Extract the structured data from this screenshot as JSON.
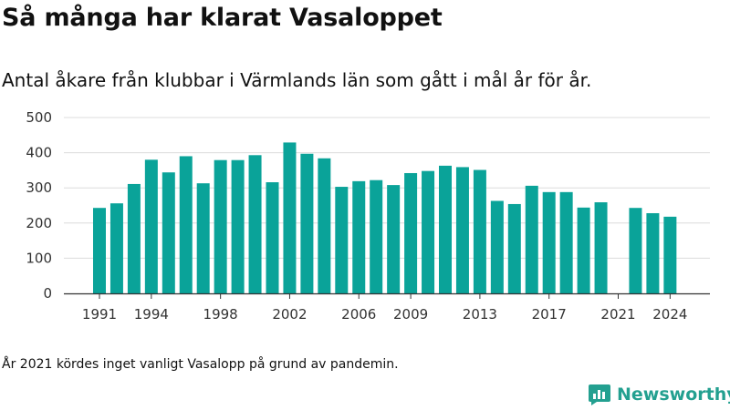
{
  "header": {
    "title": "Så många har klarat Vasaloppet",
    "subtitle": "Antal åkare från klubbar i Värmlands län som gått i mål år för år."
  },
  "footnote": "År 2021 kördes inget vanligt Vasalopp på grund av pandemin.",
  "brand": {
    "name": "Newsworthy",
    "icon": "newsworthy-logo-icon",
    "color": "#23a090"
  },
  "chart_data": {
    "type": "bar",
    "bar_color": "#0aa399",
    "ylim": [
      0,
      500
    ],
    "y_ticks": [
      0,
      100,
      200,
      300,
      400,
      500
    ],
    "x_ticks": [
      "1991",
      "1994",
      "1998",
      "2002",
      "2006",
      "2009",
      "2013",
      "2017",
      "2021",
      "2024"
    ],
    "grid": true,
    "categories": [
      "1991",
      "1992",
      "1993",
      "1994",
      "1995",
      "1996",
      "1997",
      "1998",
      "1999",
      "2000",
      "2001",
      "2002",
      "2003",
      "2004",
      "2005",
      "2006",
      "2007",
      "2008",
      "2009",
      "2010",
      "2011",
      "2012",
      "2013",
      "2014",
      "2015",
      "2016",
      "2017",
      "2018",
      "2019",
      "2020",
      "2021",
      "2022",
      "2023",
      "2024"
    ],
    "values": [
      243,
      256,
      311,
      380,
      344,
      390,
      313,
      379,
      379,
      393,
      316,
      429,
      397,
      384,
      303,
      319,
      322,
      308,
      342,
      348,
      363,
      359,
      351,
      263,
      254,
      306,
      288,
      288,
      244,
      259,
      null,
      243,
      228,
      218
    ]
  }
}
